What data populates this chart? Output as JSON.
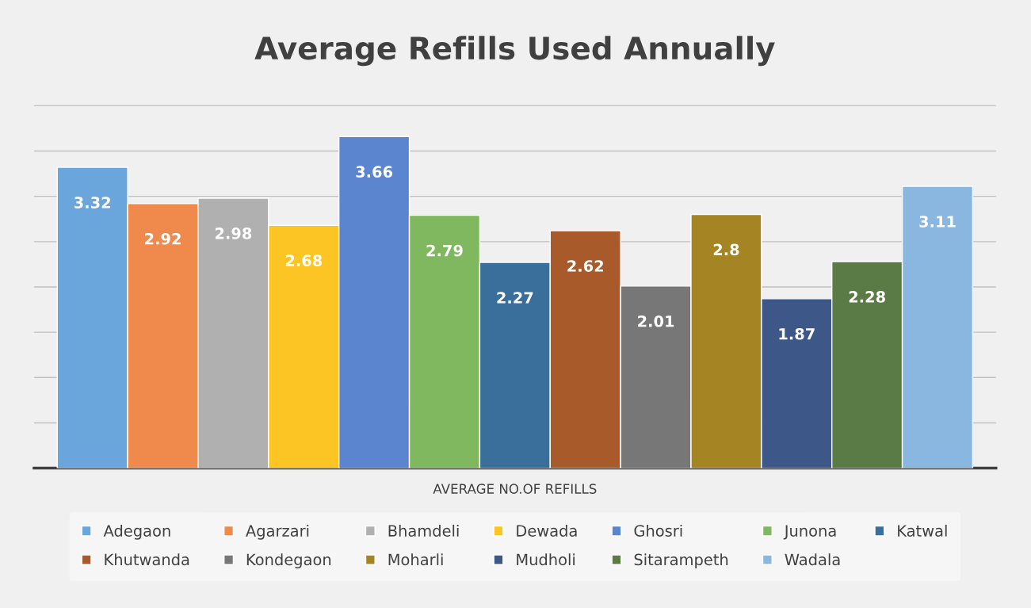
{
  "chart_data": {
    "type": "bar",
    "title": "Average Refills Used Annually",
    "xlabel": "AVERAGE NO.OF REFILLS",
    "categories": [
      null,
      null,
      null,
      null,
      null,
      null,
      null,
      null,
      null,
      null,
      null,
      null,
      null
    ],
    "stacked": true,
    "series": [
      {
        "name": "Adegaon",
        "color": "#6aa6dc",
        "values": [
          3.32,
          null,
          null,
          null,
          null,
          null,
          null,
          null,
          null,
          null,
          null,
          null,
          null
        ]
      },
      {
        "name": "Agarzari",
        "color": "#ef8a4c",
        "values": [
          null,
          2.92,
          null,
          null,
          null,
          null,
          null,
          null,
          null,
          null,
          null,
          null,
          null
        ]
      },
      {
        "name": "Bhamdeli",
        "color": "#b0b0b0",
        "values": [
          null,
          null,
          2.98,
          null,
          null,
          null,
          null,
          null,
          null,
          null,
          null,
          null,
          null
        ]
      },
      {
        "name": "Dewada",
        "color": "#fdc524",
        "values": [
          null,
          null,
          null,
          2.68,
          null,
          null,
          null,
          null,
          null,
          null,
          null,
          null,
          null
        ]
      },
      {
        "name": "Ghosri",
        "color": "#5b85cf",
        "values": [
          null,
          null,
          null,
          null,
          3.66,
          null,
          null,
          null,
          null,
          null,
          null,
          null,
          null
        ]
      },
      {
        "name": "Junona",
        "color": "#7fb85e",
        "values": [
          null,
          null,
          null,
          null,
          null,
          2.79,
          null,
          null,
          null,
          null,
          null,
          null,
          null
        ]
      },
      {
        "name": "Katwal",
        "color": "#3a6f9c",
        "values": [
          null,
          null,
          null,
          null,
          null,
          null,
          2.27,
          null,
          null,
          null,
          null,
          null,
          null
        ]
      },
      {
        "name": "Khutwanda",
        "color": "#a85a2a",
        "values": [
          null,
          null,
          null,
          null,
          null,
          null,
          null,
          2.62,
          null,
          null,
          null,
          null,
          null
        ]
      },
      {
        "name": "Kondegaon",
        "color": "#777777",
        "values": [
          null,
          null,
          null,
          null,
          null,
          null,
          null,
          null,
          2.01,
          null,
          null,
          null,
          null
        ]
      },
      {
        "name": "Moharli",
        "color": "#a58424",
        "values": [
          null,
          null,
          null,
          null,
          null,
          null,
          null,
          null,
          null,
          2.8,
          null,
          null,
          null
        ]
      },
      {
        "name": "Mudholi",
        "color": "#3d5788",
        "values": [
          null,
          null,
          null,
          null,
          null,
          null,
          null,
          null,
          null,
          null,
          1.87,
          null,
          null
        ]
      },
      {
        "name": "Sitarampeth",
        "color": "#5a7b45",
        "values": [
          null,
          null,
          null,
          null,
          null,
          null,
          null,
          null,
          null,
          null,
          null,
          2.28,
          null
        ]
      },
      {
        "name": "Wadala",
        "color": "#8ab7e0",
        "values": [
          null,
          null,
          null,
          null,
          null,
          null,
          null,
          null,
          null,
          null,
          null,
          null,
          3.11
        ]
      }
    ],
    "tick_labels": false,
    "grid": "y",
    "legend": "bottom",
    "data_labels": true
  }
}
